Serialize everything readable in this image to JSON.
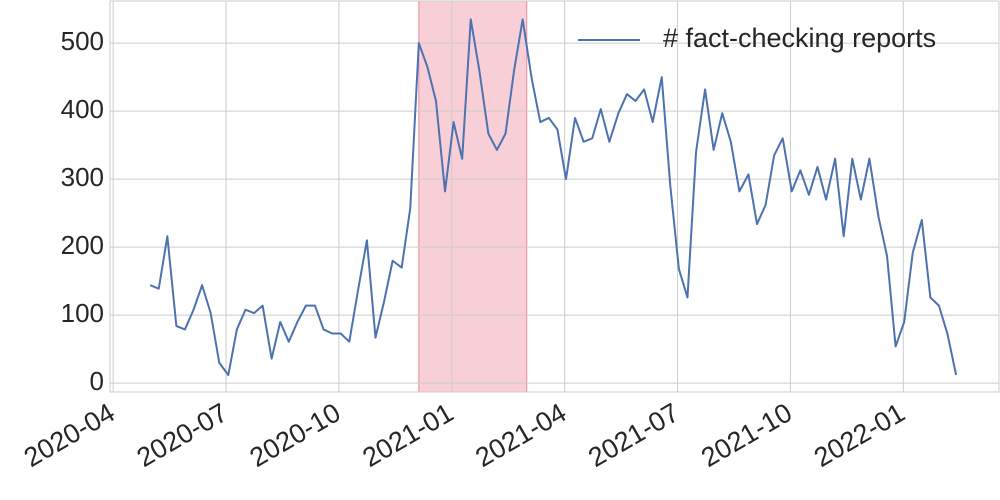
{
  "chart_data": {
    "type": "line",
    "x": [
      2020.332,
      2020.351,
      2020.37,
      2020.39,
      2020.409,
      2020.428,
      2020.447,
      2020.466,
      2020.485,
      2020.505,
      2020.524,
      2020.543,
      2020.562,
      2020.581,
      2020.601,
      2020.62,
      2020.639,
      2020.658,
      2020.677,
      2020.697,
      2020.716,
      2020.735,
      2020.754,
      2020.773,
      2020.793,
      2020.812,
      2020.831,
      2020.85,
      2020.869,
      2020.889,
      2020.908,
      2020.927,
      2020.946,
      2020.965,
      2020.985,
      2021.004,
      2021.023,
      2021.042,
      2021.061,
      2021.081,
      2021.1,
      2021.119,
      2021.138,
      2021.157,
      2021.177,
      2021.196,
      2021.215,
      2021.234,
      2021.253,
      2021.273,
      2021.292,
      2021.311,
      2021.33,
      2021.349,
      2021.369,
      2021.388,
      2021.407,
      2021.426,
      2021.445,
      2021.465,
      2021.484,
      2021.503,
      2021.522,
      2021.541,
      2021.561,
      2021.58,
      2021.599,
      2021.618,
      2021.637,
      2021.657,
      2021.676,
      2021.695,
      2021.714,
      2021.733,
      2021.753,
      2021.772,
      2021.791,
      2021.81,
      2021.829,
      2021.849,
      2021.868,
      2021.887,
      2021.906,
      2021.925,
      2021.945,
      2021.964,
      2021.983,
      2022.002,
      2022.021,
      2022.041,
      2022.06,
      2022.079,
      2022.098,
      2022.117
    ],
    "series": [
      {
        "name": "# fact-checking reports",
        "color": "#4c72b0",
        "values": [
          144,
          139,
          216,
          84,
          79,
          108,
          144,
          103,
          30,
          12,
          79,
          108,
          103,
          114,
          36,
          90,
          61,
          90,
          114,
          114,
          79,
          73,
          73,
          61,
          139,
          210,
          67,
          120,
          180,
          170,
          257,
          500,
          465,
          415,
          282,
          384,
          330,
          535,
          460,
          367,
          343,
          367,
          460,
          535,
          448,
          384,
          390,
          373,
          300,
          390,
          355,
          360,
          403,
          355,
          397,
          425,
          415,
          432,
          384,
          450,
          290,
          168,
          126,
          340,
          432,
          343,
          397,
          355,
          282,
          307,
          234,
          262,
          335,
          360,
          282,
          313,
          277,
          318,
          270,
          330,
          216,
          330,
          270,
          330,
          245,
          187,
          54,
          90,
          192,
          240,
          126,
          114,
          72,
          12
        ]
      }
    ],
    "highlight": {
      "xlim": [
        2020.927,
        2021.166
      ],
      "color": "#f4b6c2"
    },
    "xlim": [
      2020.243,
      2022.212
    ],
    "ylim": [
      -13,
      562
    ],
    "xticks": [
      {
        "value": 2020.25,
        "label": "2020-04"
      },
      {
        "value": 2020.5,
        "label": "2020-07"
      },
      {
        "value": 2020.75,
        "label": "2020-10"
      },
      {
        "value": 2021.0,
        "label": "2021-01"
      },
      {
        "value": 2021.25,
        "label": "2021-04"
      },
      {
        "value": 2021.5,
        "label": "2021-07"
      },
      {
        "value": 2021.75,
        "label": "2021-10"
      },
      {
        "value": 2022.0,
        "label": "2022-01"
      }
    ],
    "yticks": [
      0,
      100,
      200,
      300,
      400,
      500
    ],
    "grid": true,
    "legend": "upper right"
  }
}
